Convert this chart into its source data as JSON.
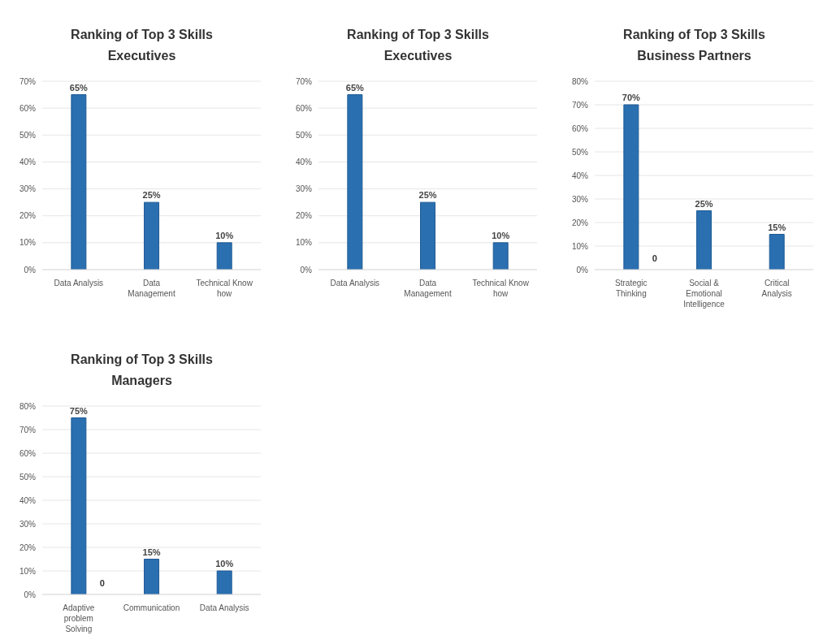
{
  "chart_data": [
    {
      "type": "bar",
      "title": "Ranking of Top 3 Skills",
      "subtitle": "Executives",
      "categories": [
        "Data Analysis",
        "Data Management",
        "Technical Know how"
      ],
      "values": [
        65,
        25,
        10
      ],
      "value_labels": [
        "65%",
        "25%",
        "10%"
      ],
      "color": "#2a6fb0",
      "ylim": [
        0,
        70
      ],
      "yticks": [
        {
          "value": 0,
          "label": "0%"
        },
        {
          "value": 10,
          "label": "10%"
        },
        {
          "value": 20,
          "label": "20%"
        },
        {
          "value": 30,
          "label": "30%"
        },
        {
          "value": 40,
          "label": "40%"
        },
        {
          "value": 50,
          "label": "50%"
        },
        {
          "value": 60,
          "label": "60%"
        },
        {
          "value": 70,
          "label": "70%"
        }
      ],
      "grid": "y"
    },
    {
      "type": "bar",
      "title": "Ranking of Top 3 Skills",
      "subtitle": "Executives",
      "categories": [
        "Data Analysis",
        "Data Management",
        "Technical Know how"
      ],
      "values": [
        65,
        25,
        10
      ],
      "value_labels": [
        "65%",
        "25%",
        "10%"
      ],
      "color": "#2a6fb0",
      "ylim": [
        0,
        70
      ],
      "yticks": [
        {
          "value": 0,
          "label": "0%"
        },
        {
          "value": 10,
          "label": "10%"
        },
        {
          "value": 20,
          "label": "20%"
        },
        {
          "value": 30,
          "label": "30%"
        },
        {
          "value": 40,
          "label": "40%"
        },
        {
          "value": 50,
          "label": "50%"
        },
        {
          "value": 60,
          "label": "60%"
        },
        {
          "value": 70,
          "label": "70%"
        }
      ],
      "grid": "y"
    },
    {
      "type": "bar",
      "title": "Ranking of Top 3 Skills",
      "subtitle": "Business Partners",
      "categories": [
        "Strategic Thinking",
        "Social & Emotional Intelligence",
        "Critical Analysis"
      ],
      "values": [
        70,
        25,
        15
      ],
      "value_labels": [
        "70%",
        "25%",
        "15%"
      ],
      "color": "#2a6fb0",
      "ylim": [
        0,
        80
      ],
      "yticks": [
        {
          "value": 0,
          "label": "0%"
        },
        {
          "value": 10,
          "label": "10%"
        },
        {
          "value": 20,
          "label": "20%"
        },
        {
          "value": 30,
          "label": "30%"
        },
        {
          "value": 40,
          "label": "40%"
        },
        {
          "value": 50,
          "label": "50%"
        },
        {
          "value": 60,
          "label": "60%"
        },
        {
          "value": 70,
          "label": "70%"
        },
        {
          "value": 80,
          "label": "80%"
        }
      ],
      "grid": "y",
      "annotations": [
        {
          "text": "0",
          "x": "Strategic Thinking",
          "y": 0
        }
      ]
    },
    {
      "type": "bar",
      "title": "Ranking of Top 3 Skills",
      "subtitle": "Managers",
      "categories": [
        "Adaptive problem Solving",
        "Communication",
        "Data Analysis"
      ],
      "values": [
        75,
        15,
        10
      ],
      "value_labels": [
        "75%",
        "15%",
        "10%"
      ],
      "color": "#2a6fb0",
      "ylim": [
        0,
        80
      ],
      "yticks": [
        {
          "value": 0,
          "label": "0%"
        },
        {
          "value": 10,
          "label": "10%"
        },
        {
          "value": 20,
          "label": "20%"
        },
        {
          "value": 30,
          "label": "30%"
        },
        {
          "value": 40,
          "label": "40%"
        },
        {
          "value": 50,
          "label": "50%"
        },
        {
          "value": 60,
          "label": "60%"
        },
        {
          "value": 70,
          "label": "70%"
        },
        {
          "value": 80,
          "label": "80%"
        }
      ],
      "grid": "y",
      "annotations": [
        {
          "text": "0",
          "x": "Adaptive problem Solving",
          "y": 0
        }
      ]
    }
  ]
}
